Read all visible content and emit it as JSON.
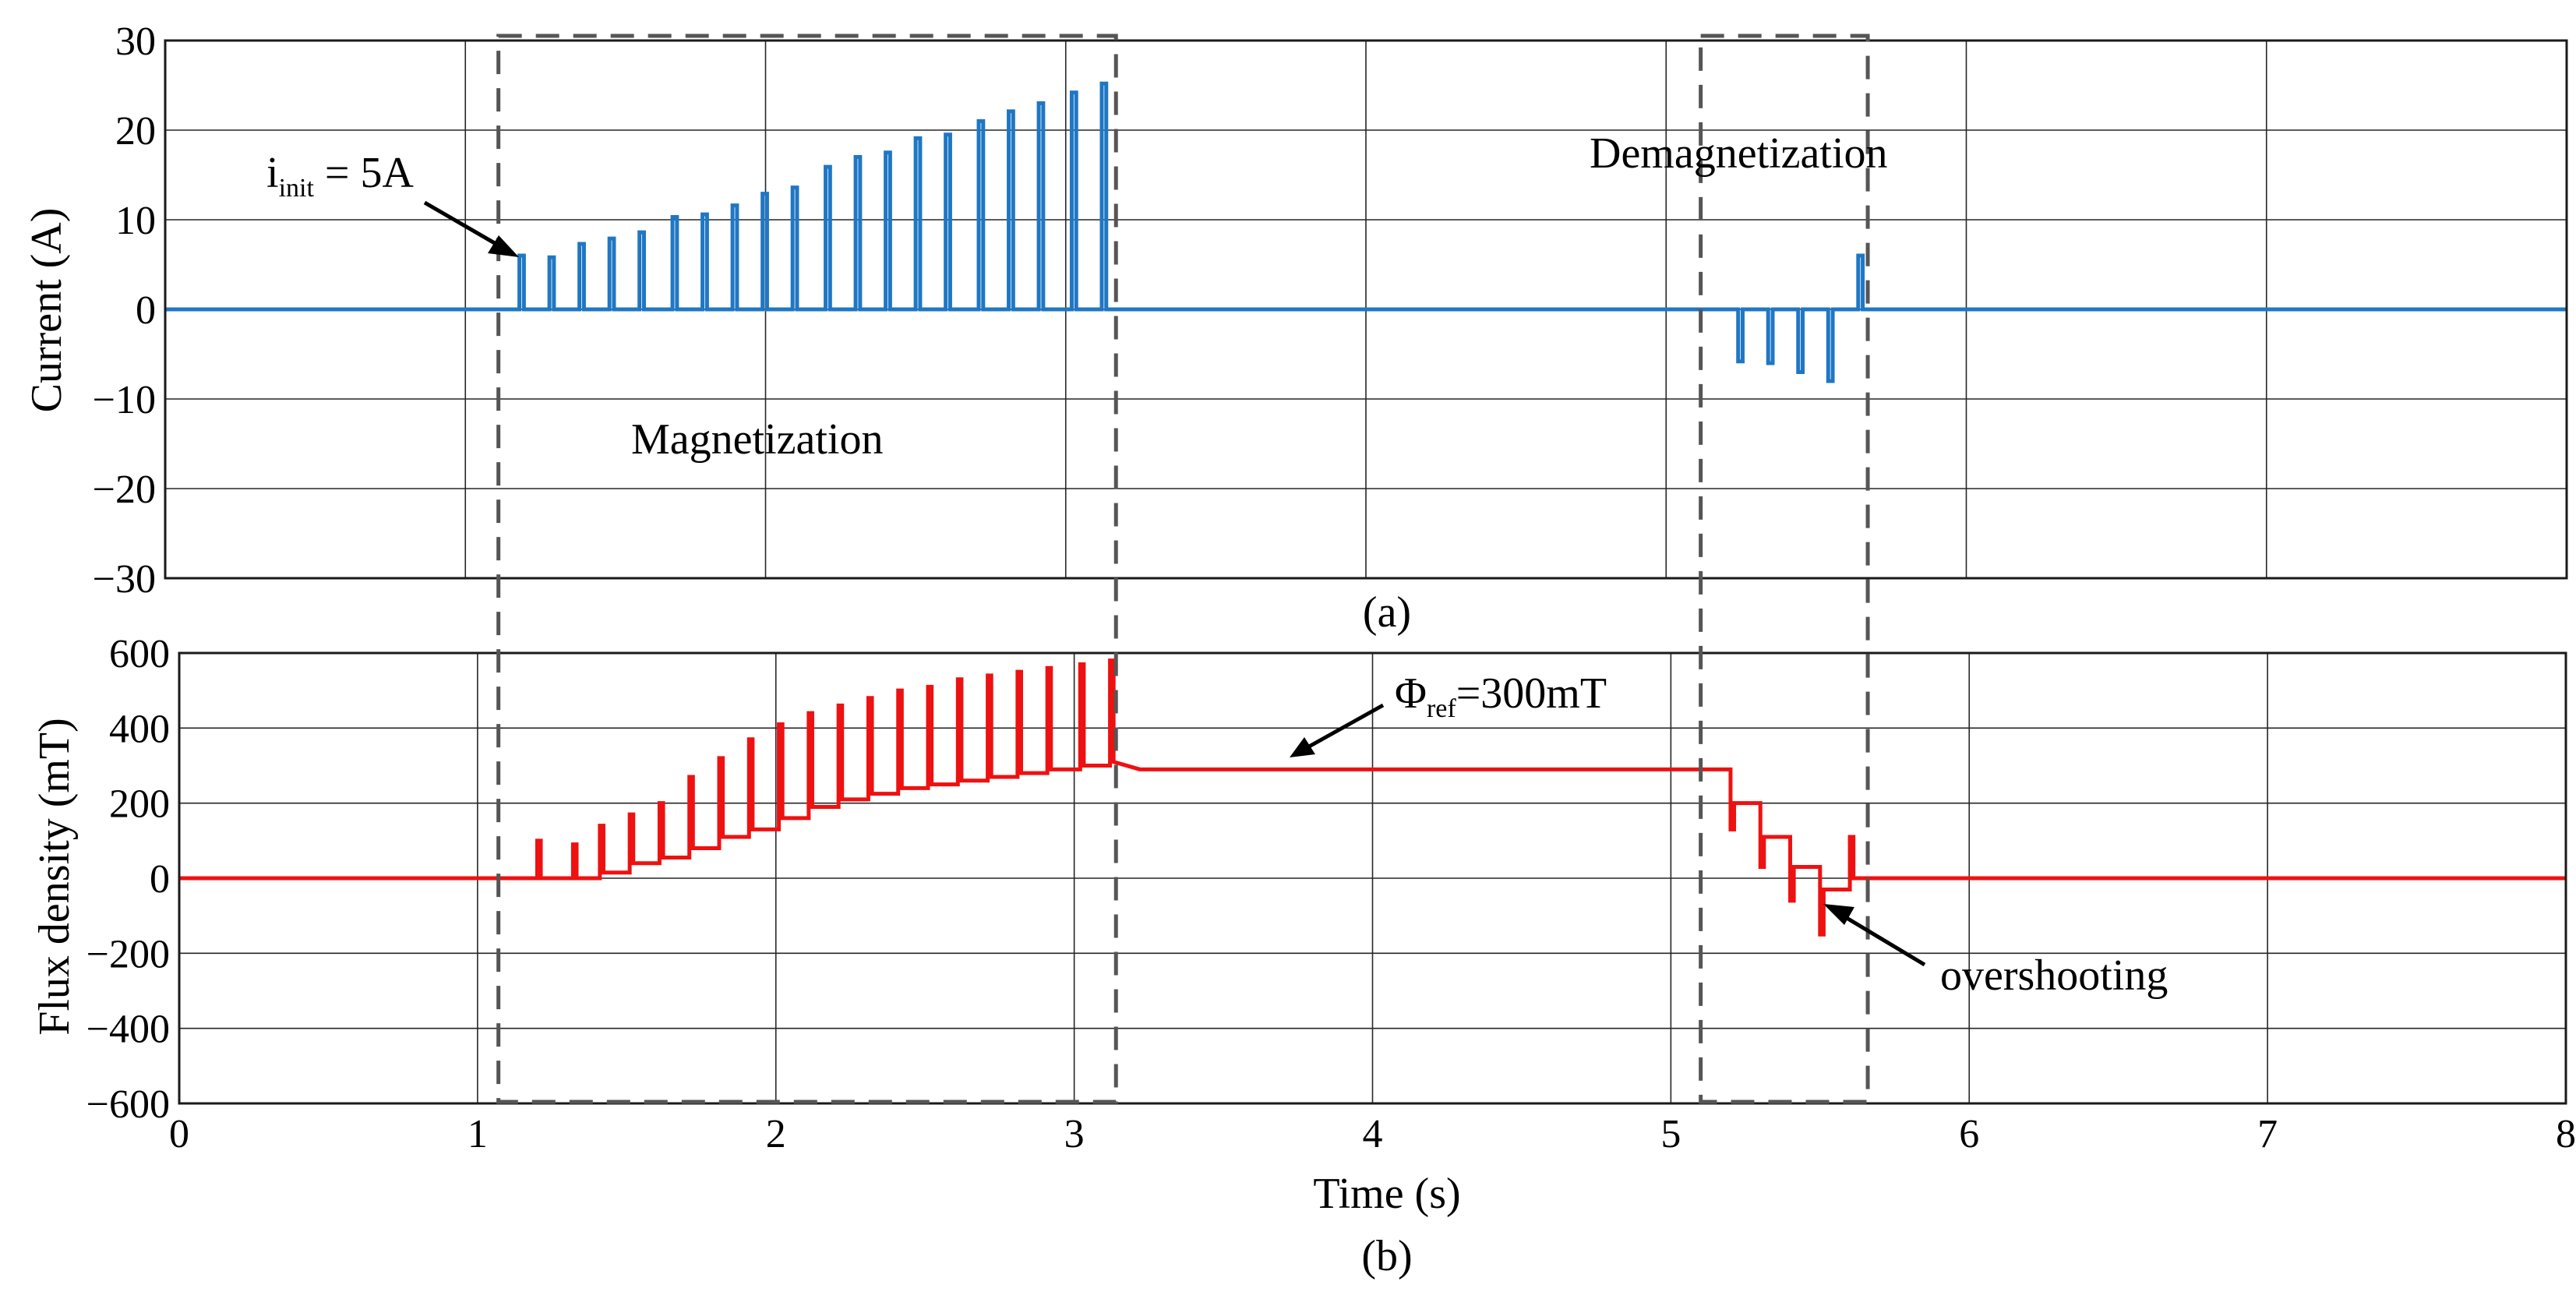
{
  "chart_data": [
    {
      "id": "a",
      "type": "line",
      "caption": "(a)",
      "xlabel": "",
      "ylabel": "Current (A)",
      "xlim": [
        0,
        8
      ],
      "ylim": [
        -30,
        30
      ],
      "yticks": [
        30,
        20,
        10,
        0,
        -10,
        -20,
        -30
      ],
      "ytick_labels": [
        "30",
        "20",
        "10",
        "0",
        "−10",
        "−20",
        "−30"
      ],
      "xticks": [
        0,
        1,
        2,
        3,
        4,
        5,
        6,
        7,
        8
      ],
      "grid": true,
      "series": [
        {
          "name": "Current",
          "color": "#1f77c4",
          "baseline": 0,
          "pulse_width_s": 0.015,
          "pulses": [
            {
              "t": 1.18,
              "v": 6
            },
            {
              "t": 1.28,
              "v": 5.8
            },
            {
              "t": 1.38,
              "v": 7.3
            },
            {
              "t": 1.48,
              "v": 7.9
            },
            {
              "t": 1.58,
              "v": 8.6
            },
            {
              "t": 1.69,
              "v": 10.3
            },
            {
              "t": 1.79,
              "v": 10.6
            },
            {
              "t": 1.89,
              "v": 11.6
            },
            {
              "t": 1.99,
              "v": 12.9
            },
            {
              "t": 2.09,
              "v": 13.6
            },
            {
              "t": 2.2,
              "v": 15.9
            },
            {
              "t": 2.3,
              "v": 17
            },
            {
              "t": 2.4,
              "v": 17.5
            },
            {
              "t": 2.5,
              "v": 19.1
            },
            {
              "t": 2.6,
              "v": 19.5
            },
            {
              "t": 2.71,
              "v": 21
            },
            {
              "t": 2.81,
              "v": 22.1
            },
            {
              "t": 2.91,
              "v": 23
            },
            {
              "t": 3.02,
              "v": 24.2
            },
            {
              "t": 3.12,
              "v": 25.2
            },
            {
              "t": 5.24,
              "v": -5.8
            },
            {
              "t": 5.34,
              "v": -6
            },
            {
              "t": 5.44,
              "v": -7
            },
            {
              "t": 5.54,
              "v": -8
            },
            {
              "t": 5.64,
              "v": 6
            }
          ]
        }
      ],
      "annotations": {
        "init_main": "i",
        "init_sub": "init",
        "init_rest": " = 5A",
        "magnetization": "Magnetization",
        "demagnetization": "Demagnetization"
      }
    },
    {
      "id": "b",
      "type": "line",
      "caption": "(b)",
      "xlabel": "Time (s)",
      "ylabel": "Flux density (mT)",
      "xlim": [
        0,
        8
      ],
      "ylim": [
        -600,
        600
      ],
      "yticks": [
        600,
        400,
        200,
        0,
        -200,
        -400,
        -600
      ],
      "ytick_labels": [
        "600",
        "400",
        "200",
        "0",
        "−200",
        "−400",
        "−600"
      ],
      "xticks": [
        0,
        1,
        2,
        3,
        4,
        5,
        6,
        7,
        8
      ],
      "xtick_labels": [
        "0",
        "1",
        "2",
        "3",
        "4",
        "5",
        "6",
        "7",
        "8"
      ],
      "grid": true,
      "series": [
        {
          "name": "Flux density",
          "color": "#ee1111",
          "steps": [
            {
              "t": 1.2,
              "spike": 100,
              "level": 0
            },
            {
              "t": 1.32,
              "spike": 90,
              "level": 0
            },
            {
              "t": 1.41,
              "spike": 140,
              "level": 15
            },
            {
              "t": 1.51,
              "spike": 170,
              "level": 40
            },
            {
              "t": 1.61,
              "spike": 200,
              "level": 55
            },
            {
              "t": 1.71,
              "spike": 270,
              "level": 80
            },
            {
              "t": 1.81,
              "spike": 320,
              "level": 110
            },
            {
              "t": 1.91,
              "spike": 370,
              "level": 130
            },
            {
              "t": 2.01,
              "spike": 410,
              "level": 160
            },
            {
              "t": 2.11,
              "spike": 440,
              "level": 190
            },
            {
              "t": 2.21,
              "spike": 460,
              "level": 210
            },
            {
              "t": 2.31,
              "spike": 480,
              "level": 225
            },
            {
              "t": 2.41,
              "spike": 500,
              "level": 240
            },
            {
              "t": 2.51,
              "spike": 510,
              "level": 250
            },
            {
              "t": 2.61,
              "spike": 530,
              "level": 260
            },
            {
              "t": 2.71,
              "spike": 540,
              "level": 270
            },
            {
              "t": 2.81,
              "spike": 550,
              "level": 280
            },
            {
              "t": 2.91,
              "spike": 560,
              "level": 290
            },
            {
              "t": 3.02,
              "spike": 570,
              "level": 300
            },
            {
              "t": 3.12,
              "spike": 580,
              "level": 310
            }
          ],
          "settle_level": 290,
          "hold_until": 5.2,
          "demag_steps": [
            {
              "t": 5.2,
              "spike": 130,
              "level": 200
            },
            {
              "t": 5.3,
              "spike": 30,
              "level": 110
            },
            {
              "t": 5.4,
              "spike": -60,
              "level": 30
            },
            {
              "t": 5.5,
              "spike": -150,
              "level": -30
            },
            {
              "t": 5.6,
              "spike": 110,
              "level": 0
            }
          ]
        }
      ],
      "annotations": {
        "phi_main": "Φ",
        "phi_sub": "ref",
        "phi_rest": "=300mT",
        "overshooting": "overshooting"
      }
    }
  ],
  "dashed_regions": [
    {
      "name": "magnetization-region",
      "t_start": 1.07,
      "t_end": 3.14
    },
    {
      "name": "demagnetization-region",
      "t_start": 5.1,
      "t_end": 5.66
    }
  ]
}
